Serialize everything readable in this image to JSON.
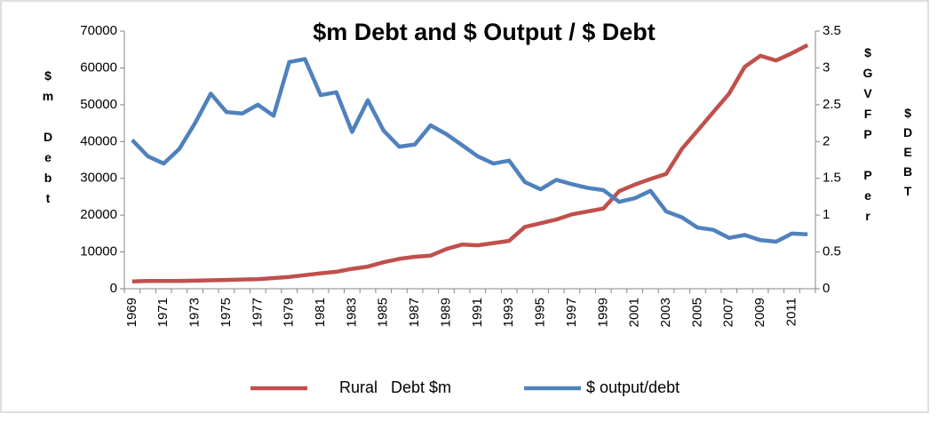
{
  "chart_data": {
    "type": "line",
    "title": "$m Debt and $ Output / $ Debt",
    "y_label": "$m Debt",
    "y2_label": [
      "$GVFP Per",
      "$DEBT"
    ],
    "categories": [
      "1969",
      null,
      "1971",
      null,
      "1973",
      null,
      "1975",
      null,
      "1977",
      null,
      "1979",
      null,
      "1981",
      null,
      "1983",
      null,
      "1985",
      null,
      "1987",
      null,
      "1989",
      null,
      "1991",
      null,
      "1993",
      null,
      "1995",
      null,
      "1997",
      null,
      "1999",
      null,
      "2001",
      null,
      "2003",
      null,
      "2005",
      null,
      "2007",
      null,
      "2009",
      null,
      "2011",
      null
    ],
    "series": [
      {
        "name": "Rural   Debt $m",
        "color": "#c0504d",
        "axis": "y",
        "values": [
          2000,
          2100,
          2100,
          2100,
          2200,
          2300,
          2400,
          2500,
          2600,
          2900,
          3200,
          3700,
          4200,
          4600,
          5400,
          6000,
          7200,
          8100,
          8700,
          9000,
          10800,
          12000,
          11800,
          12400,
          13000,
          16800,
          17800,
          18800,
          20200,
          21000,
          21800,
          26500,
          28300,
          29800,
          31200,
          38000,
          43000,
          48000,
          53000,
          60300,
          63300,
          62000,
          64000,
          66200
        ]
      },
      {
        "name": "$ output/debt",
        "color": "#4f81bd",
        "axis": "y2",
        "values": [
          2.02,
          1.8,
          1.7,
          1.9,
          2.25,
          2.65,
          2.4,
          2.38,
          2.5,
          2.35,
          3.08,
          3.12,
          2.63,
          2.67,
          2.13,
          2.56,
          2.15,
          1.93,
          1.96,
          2.22,
          2.1,
          1.95,
          1.8,
          1.7,
          1.74,
          1.45,
          1.35,
          1.48,
          1.42,
          1.37,
          1.34,
          1.18,
          1.23,
          1.33,
          1.05,
          0.97,
          0.83,
          0.8,
          0.69,
          0.73,
          0.66,
          0.64,
          0.75,
          0.74
        ]
      }
    ],
    "ylim": [
      0,
      70000
    ],
    "yticks": [
      0,
      10000,
      20000,
      30000,
      40000,
      50000,
      60000,
      70000
    ],
    "y2lim": [
      0,
      3.5
    ],
    "y2ticks": [
      0,
      0.5,
      1,
      1.5,
      2,
      2.5,
      3,
      3.5
    ],
    "grid": false,
    "legend": "bottom"
  }
}
